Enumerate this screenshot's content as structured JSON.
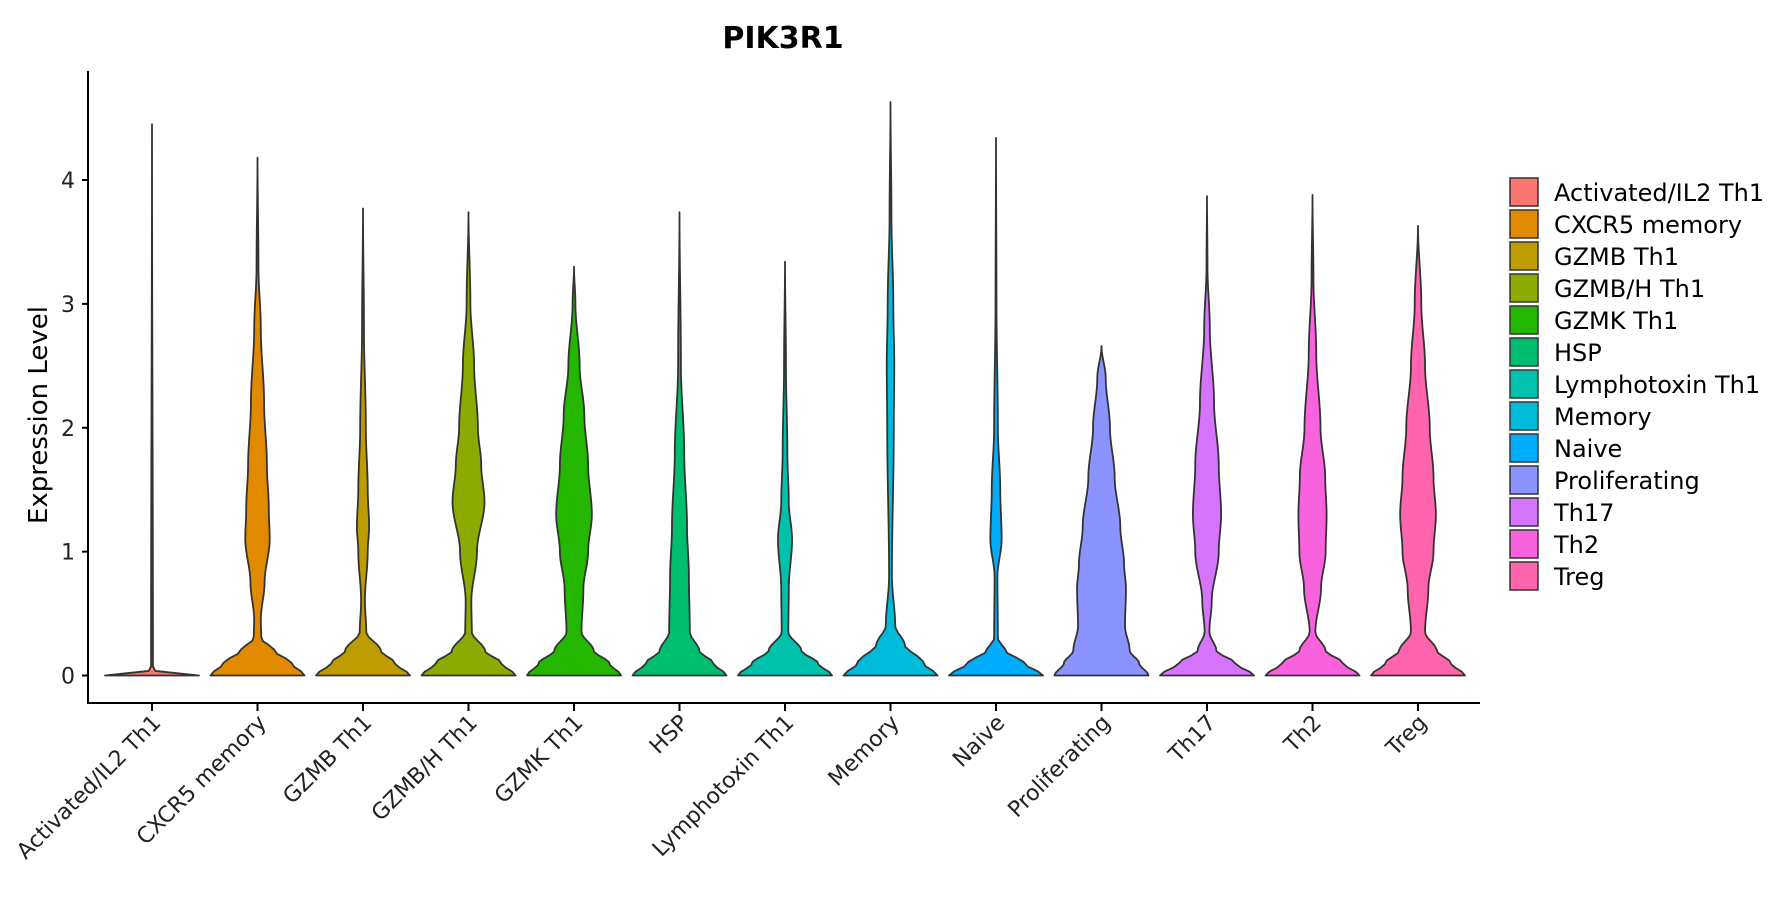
{
  "chart_data": {
    "type": "violin",
    "title": "PIK3R1",
    "xlabel": "",
    "ylabel": "Expression Level",
    "ylim": [
      -0.23,
      4.88
    ],
    "yticks": [
      0,
      1,
      2,
      3,
      4
    ],
    "grid": false,
    "legend_position": "right",
    "categories": [
      "Activated/IL2 Th1",
      "CXCR5 memory",
      "GZMB Th1",
      "GZMB/H Th1",
      "GZMK Th1",
      "HSP",
      "Lymphotoxin Th1",
      "Memory",
      "Naive",
      "Proliferating",
      "Th17",
      "Th2",
      "Treg"
    ],
    "series": [
      {
        "name": "Activated/IL2 Th1",
        "color": "#F8766D",
        "max": 4.45,
        "profile": [
          [
            0,
            1.0
          ],
          [
            0.01,
            1.0
          ],
          [
            0.02,
            0.15
          ],
          [
            0.05,
            0.02
          ],
          [
            4.45,
            0
          ]
        ]
      },
      {
        "name": "CXCR5 memory",
        "color": "#E18A00",
        "max": 4.18,
        "profile": [
          [
            0,
            1.0
          ],
          [
            0.1,
            0.72
          ],
          [
            0.2,
            0.36
          ],
          [
            0.3,
            0.08
          ],
          [
            0.45,
            0.07
          ],
          [
            0.75,
            0.15
          ],
          [
            1.1,
            0.26
          ],
          [
            1.35,
            0.24
          ],
          [
            1.7,
            0.2
          ],
          [
            2.2,
            0.14
          ],
          [
            2.8,
            0.07
          ],
          [
            3.3,
            0.02
          ],
          [
            4.18,
            0
          ]
        ]
      },
      {
        "name": "GZMB Th1",
        "color": "#BE9C00",
        "max": 3.77,
        "profile": [
          [
            0,
            1.0
          ],
          [
            0.1,
            0.68
          ],
          [
            0.2,
            0.38
          ],
          [
            0.35,
            0.07
          ],
          [
            0.6,
            0.04
          ],
          [
            1.0,
            0.1
          ],
          [
            1.2,
            0.13
          ],
          [
            1.5,
            0.1
          ],
          [
            2.0,
            0.06
          ],
          [
            2.8,
            0.02
          ],
          [
            3.77,
            0
          ]
        ]
      },
      {
        "name": "GZMB/H Th1",
        "color": "#8CAB00",
        "max": 3.74,
        "profile": [
          [
            0,
            1.0
          ],
          [
            0.1,
            0.7
          ],
          [
            0.2,
            0.35
          ],
          [
            0.35,
            0.07
          ],
          [
            0.6,
            0.06
          ],
          [
            1.0,
            0.18
          ],
          [
            1.4,
            0.34
          ],
          [
            1.7,
            0.27
          ],
          [
            2.0,
            0.2
          ],
          [
            2.5,
            0.12
          ],
          [
            3.0,
            0.04
          ],
          [
            3.74,
            0
          ]
        ]
      },
      {
        "name": "GZMK Th1",
        "color": "#24B700",
        "max": 3.3,
        "profile": [
          [
            0,
            1.0
          ],
          [
            0.1,
            0.75
          ],
          [
            0.2,
            0.42
          ],
          [
            0.35,
            0.16
          ],
          [
            0.7,
            0.2
          ],
          [
            1.0,
            0.3
          ],
          [
            1.3,
            0.38
          ],
          [
            1.7,
            0.3
          ],
          [
            2.1,
            0.22
          ],
          [
            2.5,
            0.12
          ],
          [
            3.0,
            0.03
          ],
          [
            3.3,
            0
          ]
        ]
      },
      {
        "name": "HSP",
        "color": "#00BE70",
        "max": 3.74,
        "profile": [
          [
            0,
            1.0
          ],
          [
            0.1,
            0.72
          ],
          [
            0.2,
            0.42
          ],
          [
            0.35,
            0.22
          ],
          [
            0.8,
            0.2
          ],
          [
            1.2,
            0.16
          ],
          [
            1.8,
            0.1
          ],
          [
            2.5,
            0.03
          ],
          [
            3.74,
            0
          ]
        ]
      },
      {
        "name": "Lymphotoxin Th1",
        "color": "#00C1AB",
        "max": 3.34,
        "profile": [
          [
            0,
            1.0
          ],
          [
            0.1,
            0.7
          ],
          [
            0.2,
            0.35
          ],
          [
            0.35,
            0.07
          ],
          [
            0.7,
            0.08
          ],
          [
            1.1,
            0.15
          ],
          [
            1.4,
            0.08
          ],
          [
            1.8,
            0.05
          ],
          [
            2.5,
            0.02
          ],
          [
            3.34,
            0
          ]
        ]
      },
      {
        "name": "Memory",
        "color": "#00BBDA",
        "max": 4.63,
        "profile": [
          [
            0,
            1.0
          ],
          [
            0.1,
            0.7
          ],
          [
            0.25,
            0.3
          ],
          [
            0.4,
            0.1
          ],
          [
            0.8,
            0.03
          ],
          [
            2.0,
            0.07
          ],
          [
            2.5,
            0.08
          ],
          [
            3.0,
            0.06
          ],
          [
            3.7,
            0.02
          ],
          [
            4.63,
            0
          ]
        ]
      },
      {
        "name": "Naive",
        "color": "#00ACFC",
        "max": 4.34,
        "profile": [
          [
            0,
            1.0
          ],
          [
            0.1,
            0.6
          ],
          [
            0.2,
            0.2
          ],
          [
            0.3,
            0.04
          ],
          [
            0.8,
            0.03
          ],
          [
            1.1,
            0.12
          ],
          [
            1.5,
            0.09
          ],
          [
            2.0,
            0.04
          ],
          [
            3.0,
            0.01
          ],
          [
            4.34,
            0
          ]
        ]
      },
      {
        "name": "Proliferating",
        "color": "#8B93FF",
        "max": 2.66,
        "profile": [
          [
            0,
            1.0
          ],
          [
            0.1,
            0.8
          ],
          [
            0.2,
            0.6
          ],
          [
            0.4,
            0.5
          ],
          [
            0.7,
            0.52
          ],
          [
            0.9,
            0.48
          ],
          [
            1.2,
            0.4
          ],
          [
            1.6,
            0.28
          ],
          [
            2.0,
            0.18
          ],
          [
            2.4,
            0.09
          ],
          [
            2.66,
            0
          ]
        ]
      },
      {
        "name": "Th17",
        "color": "#D575FE",
        "max": 3.87,
        "profile": [
          [
            0,
            1.0
          ],
          [
            0.1,
            0.6
          ],
          [
            0.2,
            0.2
          ],
          [
            0.35,
            0.05
          ],
          [
            0.6,
            0.1
          ],
          [
            1.0,
            0.25
          ],
          [
            1.3,
            0.3
          ],
          [
            1.7,
            0.25
          ],
          [
            2.2,
            0.15
          ],
          [
            2.8,
            0.06
          ],
          [
            3.3,
            0.01
          ],
          [
            3.87,
            0
          ]
        ]
      },
      {
        "name": "Th2",
        "color": "#F962DD",
        "max": 3.88,
        "profile": [
          [
            0,
            1.0
          ],
          [
            0.1,
            0.65
          ],
          [
            0.2,
            0.28
          ],
          [
            0.35,
            0.06
          ],
          [
            0.7,
            0.18
          ],
          [
            1.0,
            0.28
          ],
          [
            1.3,
            0.3
          ],
          [
            1.6,
            0.27
          ],
          [
            2.0,
            0.17
          ],
          [
            2.6,
            0.08
          ],
          [
            3.2,
            0.02
          ],
          [
            3.88,
            0
          ]
        ]
      },
      {
        "name": "Treg",
        "color": "#FF65AC",
        "max": 3.63,
        "profile": [
          [
            0,
            1.0
          ],
          [
            0.1,
            0.7
          ],
          [
            0.2,
            0.4
          ],
          [
            0.35,
            0.15
          ],
          [
            0.7,
            0.22
          ],
          [
            1.0,
            0.33
          ],
          [
            1.3,
            0.38
          ],
          [
            1.6,
            0.33
          ],
          [
            2.0,
            0.25
          ],
          [
            2.5,
            0.15
          ],
          [
            3.0,
            0.07
          ],
          [
            3.63,
            0
          ]
        ]
      }
    ]
  }
}
